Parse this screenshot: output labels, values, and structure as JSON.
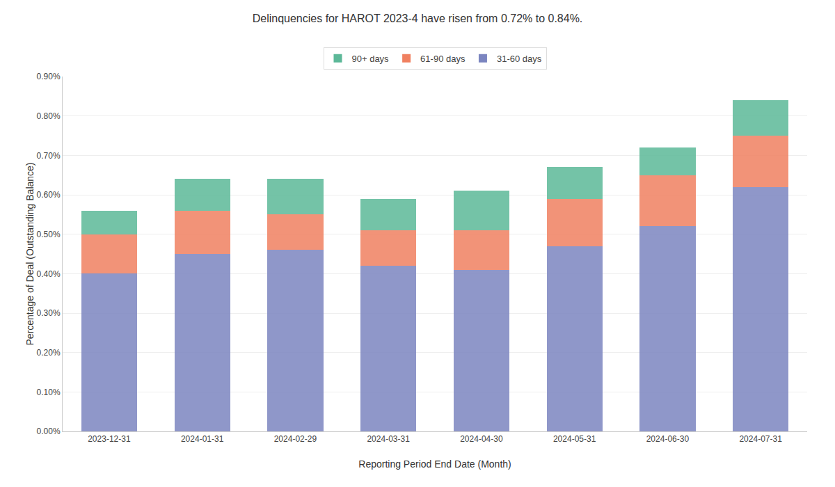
{
  "chart_data": {
    "type": "bar",
    "stacked": true,
    "title": "Delinquencies for HAROT 2023-4 have risen from 0.72% to 0.84%.",
    "xlabel": "Reporting Period End Date (Month)",
    "ylabel": "Percentage of Deal (Outstanding Balance)",
    "categories": [
      "2023-12-31",
      "2024-01-31",
      "2024-02-29",
      "2024-03-31",
      "2024-04-30",
      "2024-05-31",
      "2024-06-30",
      "2024-07-31"
    ],
    "series": [
      {
        "name": "31-60 days",
        "color": "#7b85c0",
        "values": [
          0.004,
          0.0045,
          0.0046,
          0.0042,
          0.0041,
          0.0047,
          0.0052,
          0.0062
        ]
      },
      {
        "name": "61-90 days",
        "color": "#f08060",
        "values": [
          0.001,
          0.0011,
          0.0009,
          0.0009,
          0.001,
          0.0012,
          0.0013,
          0.0013
        ]
      },
      {
        "name": "90+ days",
        "color": "#5cb898",
        "values": [
          0.0006,
          0.0008,
          0.0009,
          0.0008,
          0.001,
          0.0008,
          0.0007,
          0.0009
        ]
      }
    ],
    "ylim": [
      0,
      0.009
    ],
    "yticks": [
      {
        "value": 0,
        "label": "0.00%"
      },
      {
        "value": 0.001,
        "label": "0.10%"
      },
      {
        "value": 0.002,
        "label": "0.20%"
      },
      {
        "value": 0.003,
        "label": "0.30%"
      },
      {
        "value": 0.004,
        "label": "0.40%"
      },
      {
        "value": 0.005,
        "label": "0.50%"
      },
      {
        "value": 0.006,
        "label": "0.60%"
      },
      {
        "value": 0.007,
        "label": "0.70%"
      },
      {
        "value": 0.008,
        "label": "0.80%"
      },
      {
        "value": 0.009,
        "label": "0.90%"
      }
    ],
    "grid": true,
    "legend": "top"
  }
}
